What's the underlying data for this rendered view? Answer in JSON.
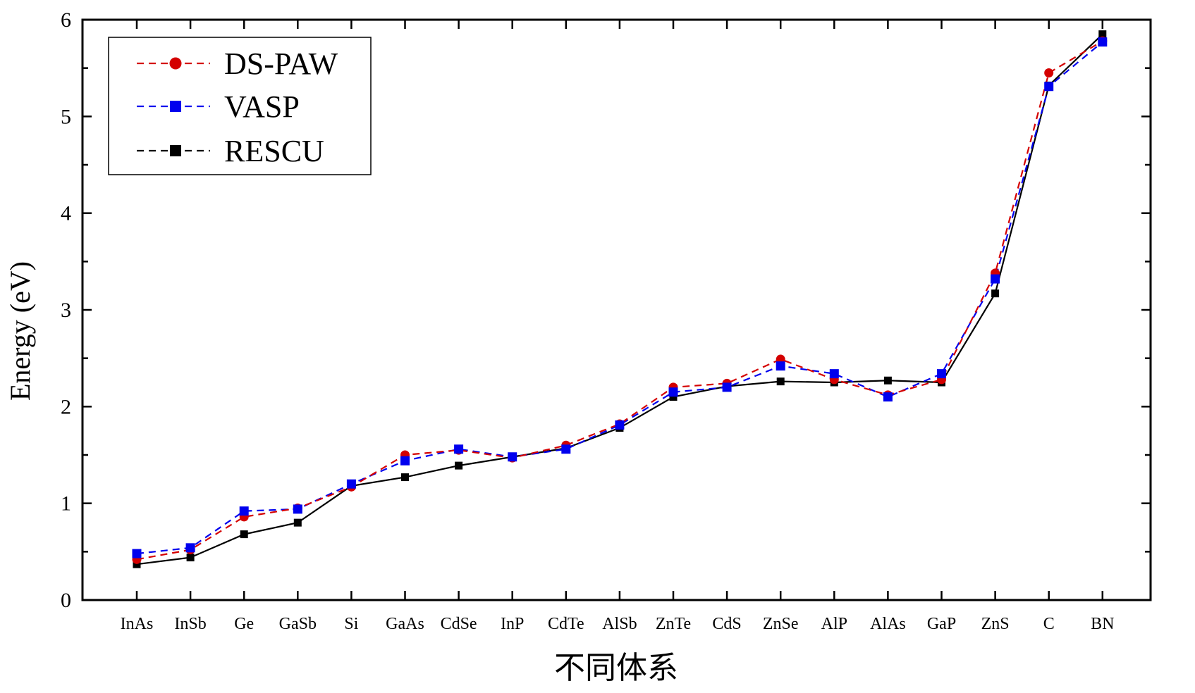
{
  "chart_data": {
    "type": "line",
    "title": "",
    "xlabel": "不同体系",
    "ylabel": "Energy (eV)",
    "ylim": [
      0,
      6
    ],
    "yticks": [
      "0",
      "1",
      "2",
      "3",
      "4",
      "5",
      "6"
    ],
    "grid": false,
    "legend_position": "top-left",
    "categories": [
      "InAs",
      "InSb",
      "Ge",
      "GaSb",
      "Si",
      "GaAs",
      "CdSe",
      "InP",
      "CdTe",
      "AlSb",
      "ZnTe",
      "CdS",
      "ZnSe",
      "AlP",
      "AlAs",
      "GaP",
      "ZnS",
      "C",
      "BN"
    ],
    "series": [
      {
        "name": "DS-PAW",
        "color": "#d40000",
        "marker": "circle",
        "line_style": "dashed",
        "values": [
          0.42,
          0.52,
          0.86,
          0.95,
          1.17,
          1.5,
          1.55,
          1.47,
          1.6,
          1.82,
          2.2,
          2.24,
          2.49,
          2.28,
          2.12,
          2.28,
          3.38,
          5.45,
          5.78
        ]
      },
      {
        "name": "VASP",
        "color": "#0000ee",
        "marker": "square",
        "line_style": "dashed",
        "values": [
          0.48,
          0.54,
          0.92,
          0.94,
          1.2,
          1.44,
          1.56,
          1.48,
          1.56,
          1.81,
          2.15,
          2.2,
          2.42,
          2.34,
          2.1,
          2.34,
          3.32,
          5.31,
          5.77
        ]
      },
      {
        "name": "RESCU",
        "color": "#000000",
        "marker": "square",
        "line_style": "dashed",
        "values": [
          0.37,
          0.44,
          0.68,
          0.8,
          1.18,
          1.27,
          1.39,
          1.48,
          1.57,
          1.78,
          2.1,
          2.21,
          2.26,
          2.25,
          2.27,
          2.25,
          3.17,
          5.32,
          5.85
        ]
      }
    ]
  }
}
